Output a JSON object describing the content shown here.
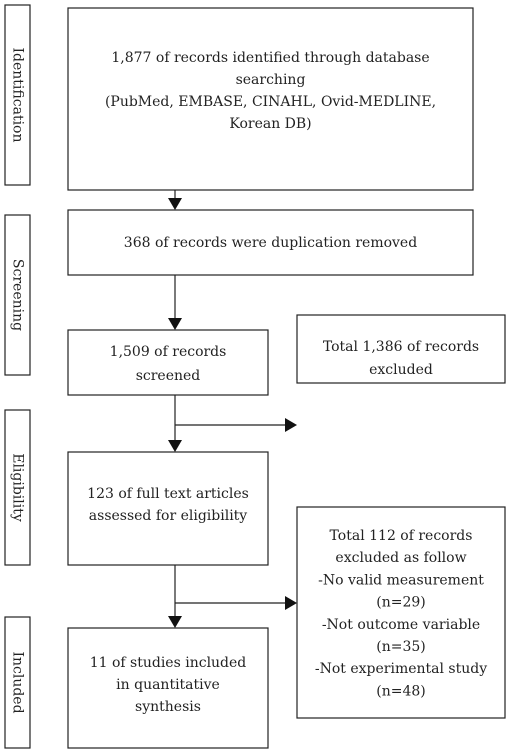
{
  "stages": [
    "Identification",
    "Screening",
    "Eligibility",
    "Included"
  ],
  "boxes": [
    {
      "lines": [
        "1,877 of records identified through database",
        "searching",
        "(PubMed, EMBASE, CINAHL, Ovid-MEDLINE,",
        "Korean DB)"
      ]
    },
    {
      "lines": [
        "368 of records were duplication removed"
      ]
    },
    {
      "lines": [
        "1,509 of records",
        "screened"
      ]
    },
    {
      "lines": [
        "Total 1,386 of records",
        "excluded"
      ]
    },
    {
      "lines": [
        "123 of full text articles",
        "assessed for eligibility"
      ]
    },
    {
      "lines": [
        "Total 112 of records",
        "excluded as follow",
        "-No valid measurement",
        "(n=29)",
        "-Not outcome variable",
        "(n=35)",
        "-Not experimental study",
        "(n=48)"
      ]
    },
    {
      "lines": [
        "11 of studies included",
        "in quantitative",
        "synthesis"
      ]
    }
  ]
}
